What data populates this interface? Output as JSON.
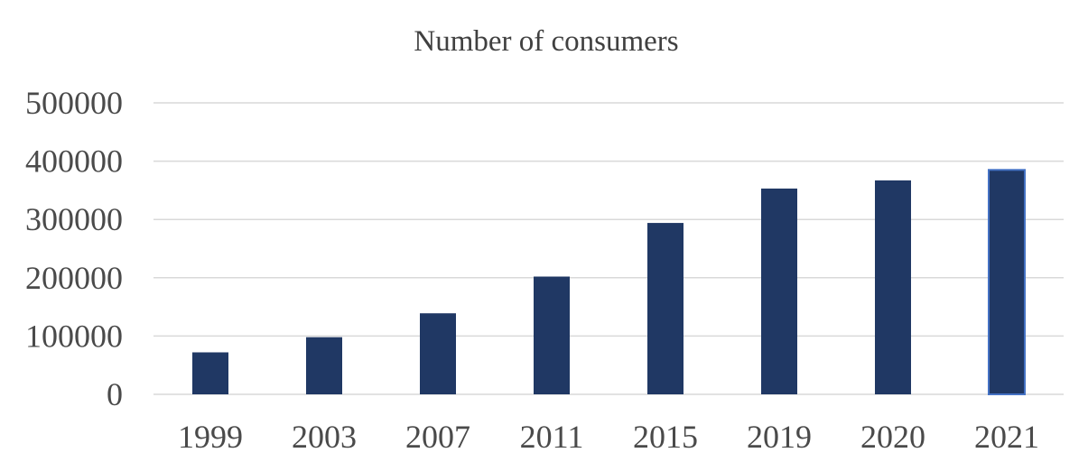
{
  "chart_data": {
    "type": "bar",
    "title": "Number of consumers",
    "xlabel": "",
    "ylabel": "",
    "categories": [
      "1999",
      "2003",
      "2007",
      "2011",
      "2015",
      "2019",
      "2020",
      "2021"
    ],
    "values": [
      72000,
      98000,
      139000,
      202000,
      294000,
      353000,
      367000,
      385000
    ],
    "ylim": [
      0,
      500000
    ],
    "yticks": [
      "0",
      "100000",
      "200000",
      "300000",
      "400000",
      "500000"
    ],
    "grid": true,
    "legend": "none",
    "colors": {
      "bar": "#203864",
      "highlight_border": "#4472c4"
    }
  }
}
